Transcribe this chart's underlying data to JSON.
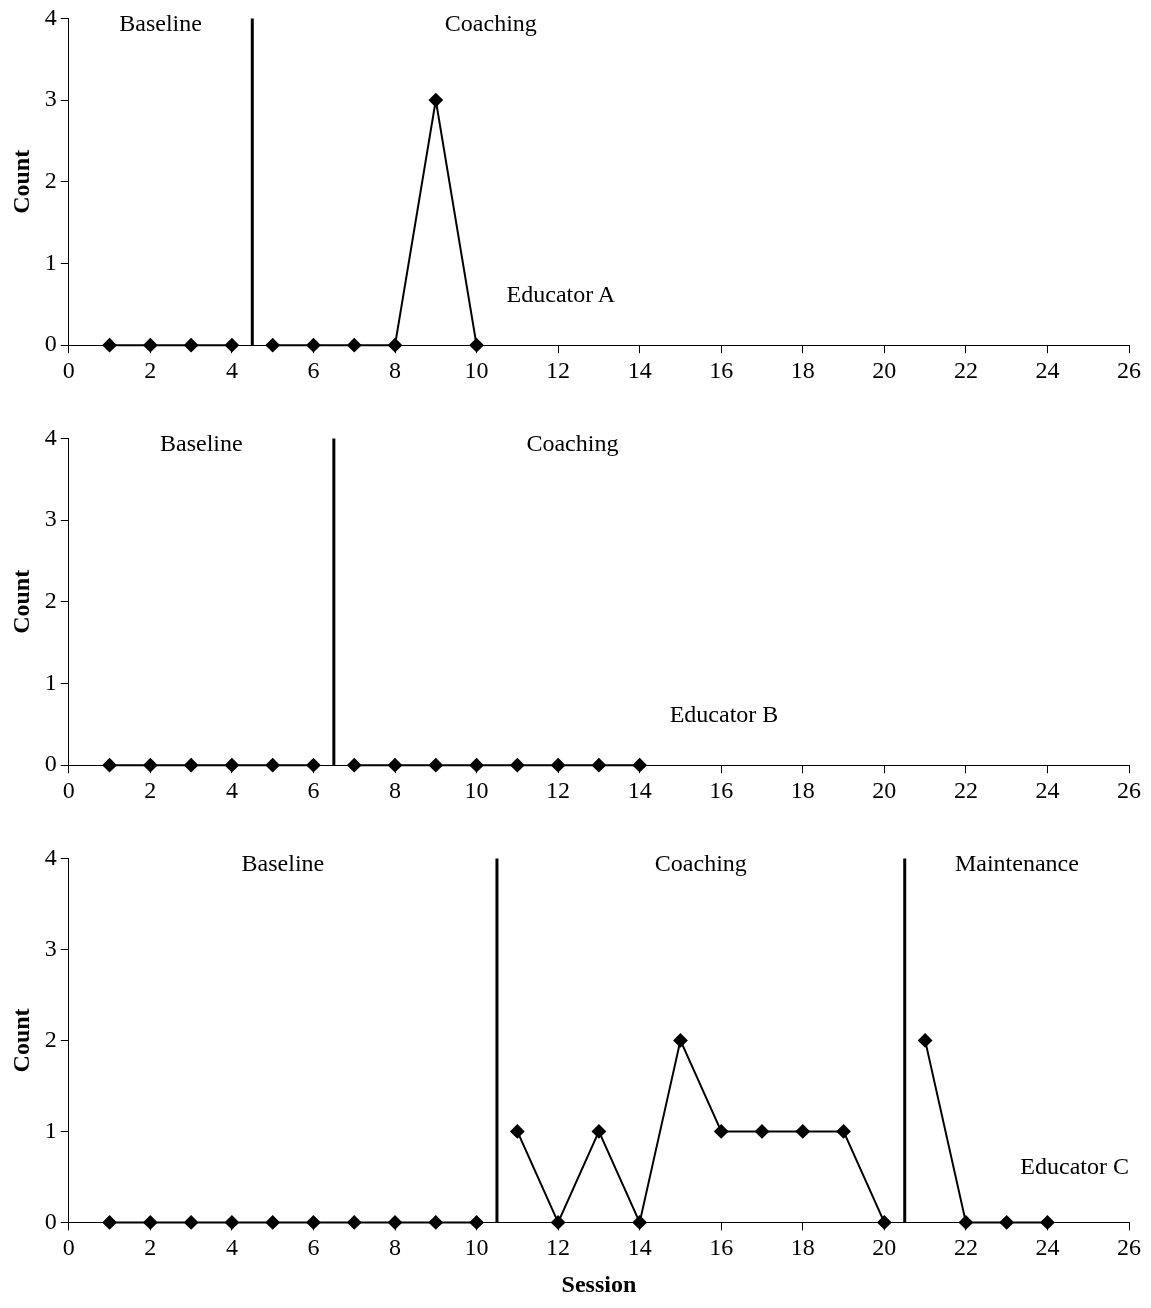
{
  "chart_data": [
    {
      "type": "line",
      "ylabel": "Count",
      "xlim": [
        0,
        26
      ],
      "ylim": [
        0,
        4
      ],
      "xticks": [
        0,
        2,
        4,
        6,
        8,
        10,
        12,
        14,
        16,
        18,
        20,
        22,
        24,
        26
      ],
      "yticks": [
        0,
        1,
        2,
        3,
        4
      ],
      "grid": false,
      "legend": false,
      "marker": "diamond",
      "line_style": "solid",
      "series": [
        {
          "x": [
            1,
            2,
            3,
            4
          ],
          "values": [
            0,
            0,
            0,
            0
          ],
          "color": "#000000"
        },
        {
          "x": [
            5,
            6,
            7,
            8,
            9,
            10
          ],
          "values": [
            0,
            0,
            0,
            0,
            3,
            0
          ],
          "color": "#000000"
        }
      ],
      "ref_lines": [
        {
          "axis": "x",
          "value": 4.5,
          "color": "#000000"
        }
      ],
      "annotations": [
        "Baseline",
        "Coaching",
        "Educator A"
      ]
    },
    {
      "type": "line",
      "ylabel": "Count",
      "xlim": [
        0,
        26
      ],
      "ylim": [
        0,
        4
      ],
      "xticks": [
        0,
        2,
        4,
        6,
        8,
        10,
        12,
        14,
        16,
        18,
        20,
        22,
        24,
        26
      ],
      "yticks": [
        0,
        1,
        2,
        3,
        4
      ],
      "grid": false,
      "legend": false,
      "marker": "diamond",
      "line_style": "solid",
      "series": [
        {
          "x": [
            1,
            2,
            3,
            4,
            5,
            6
          ],
          "values": [
            0,
            0,
            0,
            0,
            0,
            0
          ],
          "color": "#000000"
        },
        {
          "x": [
            7,
            8,
            9,
            10,
            11,
            12,
            13,
            14
          ],
          "values": [
            0,
            0,
            0,
            0,
            0,
            0,
            0,
            0
          ],
          "color": "#000000"
        }
      ],
      "ref_lines": [
        {
          "axis": "x",
          "value": 6.5,
          "color": "#000000"
        }
      ],
      "annotations": [
        "Baseline",
        "Coaching",
        "Educator B"
      ]
    },
    {
      "type": "line",
      "xlabel": "Session",
      "ylabel": "Count",
      "xlim": [
        0,
        26
      ],
      "ylim": [
        0,
        4
      ],
      "xticks": [
        0,
        2,
        4,
        6,
        8,
        10,
        12,
        14,
        16,
        18,
        20,
        22,
        24,
        26
      ],
      "yticks": [
        0,
        1,
        2,
        3,
        4
      ],
      "grid": false,
      "legend": false,
      "marker": "diamond",
      "line_style": "solid",
      "series": [
        {
          "x": [
            1,
            2,
            3,
            4,
            5,
            6,
            7,
            8,
            9,
            10
          ],
          "values": [
            0,
            0,
            0,
            0,
            0,
            0,
            0,
            0,
            0,
            0
          ],
          "color": "#000000"
        },
        {
          "x": [
            11,
            12,
            13,
            14,
            15,
            16,
            17,
            18,
            19,
            20
          ],
          "values": [
            1,
            0,
            1,
            0,
            2,
            1,
            1,
            1,
            1,
            0
          ],
          "color": "#000000"
        },
        {
          "x": [
            21,
            22,
            23,
            24
          ],
          "values": [
            2,
            0,
            0,
            0
          ],
          "color": "#000000"
        }
      ],
      "ref_lines": [
        {
          "axis": "x",
          "value": 10.5,
          "color": "#000000"
        },
        {
          "axis": "x",
          "value": 20.5,
          "color": "#000000"
        }
      ],
      "annotations": [
        "Baseline",
        "Coaching",
        "Maintenance",
        "Educator C"
      ]
    }
  ]
}
